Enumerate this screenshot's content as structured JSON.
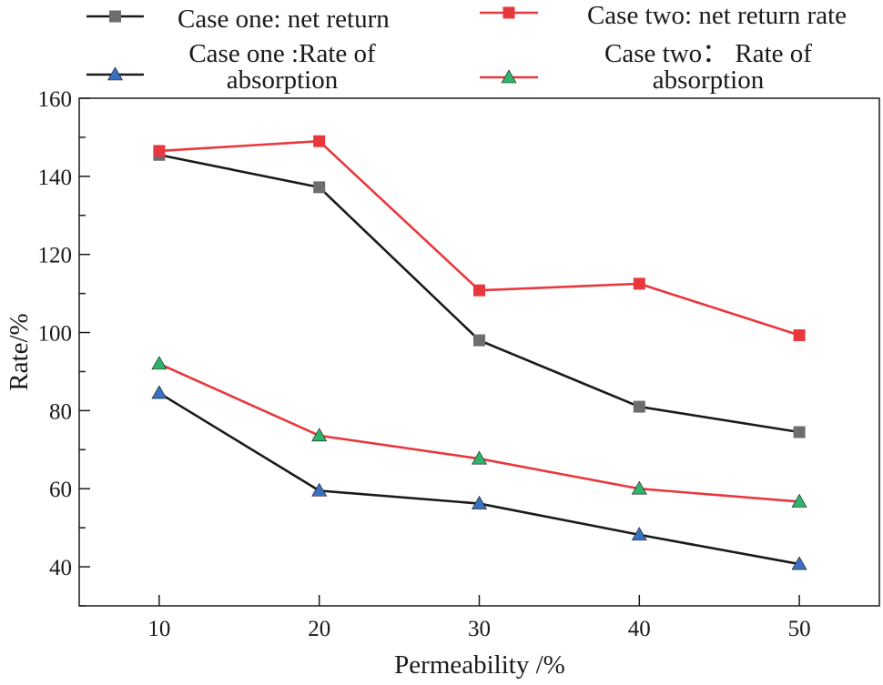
{
  "chart_data": {
    "type": "line",
    "title": "",
    "xlabel": "Permeability /%",
    "ylabel": "Rate/%",
    "x": [
      10,
      20,
      30,
      40,
      50
    ],
    "x_ticks": [
      10,
      20,
      30,
      40,
      50
    ],
    "y_ticks": [
      40,
      60,
      80,
      100,
      120,
      140,
      160
    ],
    "xlim": [
      5,
      55
    ],
    "ylim": [
      30,
      160
    ],
    "grid": false,
    "legend_position": "top",
    "series": [
      {
        "name": "Case one: net return",
        "legend_lines": [
          "Case one: net return"
        ],
        "values": [
          145.5,
          137.2,
          98.0,
          81.0,
          74.5
        ],
        "line_color": "#1a1a1a",
        "marker": "square",
        "marker_color": "#6d6d6d"
      },
      {
        "name": "Case two: net return rate",
        "legend_lines": [
          "Case two: net return rate"
        ],
        "values": [
          146.5,
          149.0,
          110.8,
          112.5,
          99.3
        ],
        "line_color": "#e8383d",
        "marker": "square",
        "marker_color": "#e8383d"
      },
      {
        "name": "Case one :Rate of absorption",
        "legend_lines": [
          "Case one :Rate of",
          "absorption"
        ],
        "values": [
          84.5,
          59.5,
          56.2,
          48.2,
          40.7
        ],
        "line_color": "#1a1a1a",
        "marker": "triangle",
        "marker_color": "#3b6fbf"
      },
      {
        "name": "Case two： Rate of absorption",
        "legend_lines": [
          "Case two：  Rate of",
          "absorption"
        ],
        "values": [
          92.0,
          73.6,
          67.7,
          60.0,
          56.7
        ],
        "line_color": "#e8383d",
        "marker": "triangle",
        "marker_color": "#2fb36a"
      }
    ]
  }
}
